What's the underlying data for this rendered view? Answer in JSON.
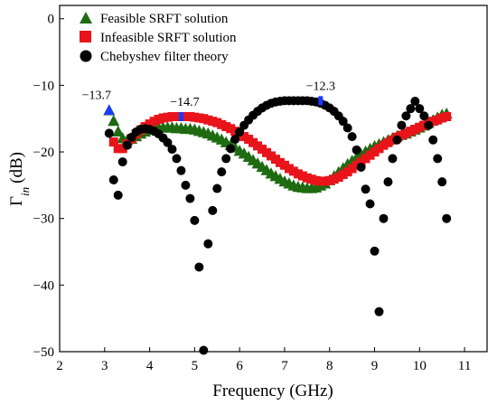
{
  "chart_data": {
    "type": "scatter",
    "xlabel": "Frequency (GHz)",
    "ylabel_main": "Γ",
    "ylabel_sub": "in",
    "ylabel_unit": "(dB)",
    "xlim": [
      2,
      11.5
    ],
    "ylim": [
      -50,
      2
    ],
    "xticks": [
      2,
      3,
      4,
      5,
      6,
      7,
      8,
      9,
      10,
      11
    ],
    "yticks": [
      0,
      -10,
      -20,
      -30,
      -40,
      -50
    ],
    "legend_position": "top-left",
    "series": [
      {
        "name": "Feasible SRFT solution",
        "marker": "triangle",
        "color": "#1e6b12",
        "x": [
          3.1,
          3.2,
          3.3,
          3.4,
          3.5,
          3.6,
          3.7,
          3.8,
          3.9,
          4.0,
          4.1,
          4.2,
          4.3,
          4.4,
          4.5,
          4.6,
          4.7,
          4.8,
          4.9,
          5.0,
          5.1,
          5.2,
          5.3,
          5.4,
          5.5,
          5.6,
          5.7,
          5.8,
          5.9,
          6.0,
          6.1,
          6.2,
          6.3,
          6.4,
          6.5,
          6.6,
          6.7,
          6.8,
          6.9,
          7.0,
          7.1,
          7.2,
          7.3,
          7.4,
          7.5,
          7.6,
          7.7,
          7.8,
          7.9,
          8.0,
          8.1,
          8.2,
          8.3,
          8.4,
          8.5,
          8.6,
          8.7,
          8.8,
          8.9,
          9.0,
          9.1,
          9.2,
          9.3,
          9.4,
          9.5,
          9.6,
          9.7,
          9.8,
          9.9,
          10.0,
          10.1,
          10.2,
          10.3,
          10.4,
          10.5,
          10.6
        ],
        "y": [
          -13.7,
          -15.3,
          -16.9,
          -17.9,
          -18.2,
          -18.0,
          -17.6,
          -17.2,
          -16.9,
          -16.6,
          -16.4,
          -16.3,
          -16.3,
          -16.3,
          -16.3,
          -16.4,
          -16.4,
          -16.5,
          -16.5,
          -16.6,
          -16.8,
          -17.0,
          -17.2,
          -17.5,
          -17.8,
          -18.1,
          -18.5,
          -18.9,
          -19.3,
          -19.8,
          -20.2,
          -20.7,
          -21.2,
          -21.7,
          -22.2,
          -22.7,
          -23.2,
          -23.6,
          -24.0,
          -24.4,
          -24.7,
          -25.0,
          -25.2,
          -25.3,
          -25.4,
          -25.4,
          -25.3,
          -25.0,
          -24.7,
          -24.2,
          -23.6,
          -23.0,
          -22.4,
          -21.8,
          -21.3,
          -20.8,
          -20.3,
          -19.9,
          -19.5,
          -19.1,
          -18.8,
          -18.5,
          -18.2,
          -17.9,
          -17.6,
          -17.4,
          -17.2,
          -16.9,
          -16.6,
          -16.3,
          -16.0,
          -15.6,
          -15.2,
          -14.8,
          -14.4,
          -14.2
        ]
      },
      {
        "name": "Infeasible SRFT solution",
        "marker": "square",
        "color": "#e8141a",
        "x": [
          3.2,
          3.3,
          3.4,
          3.5,
          3.6,
          3.7,
          3.8,
          3.9,
          4.0,
          4.1,
          4.2,
          4.3,
          4.4,
          4.5,
          4.6,
          4.7,
          4.8,
          4.9,
          5.0,
          5.1,
          5.2,
          5.3,
          5.4,
          5.5,
          5.6,
          5.7,
          5.8,
          5.9,
          6.0,
          6.1,
          6.2,
          6.3,
          6.4,
          6.5,
          6.6,
          6.7,
          6.8,
          6.9,
          7.0,
          7.1,
          7.2,
          7.3,
          7.4,
          7.5,
          7.6,
          7.7,
          7.8,
          7.9,
          8.0,
          8.1,
          8.2,
          8.3,
          8.4,
          8.5,
          8.6,
          8.7,
          8.8,
          8.9,
          9.0,
          9.1,
          9.2,
          9.3,
          9.4,
          9.5,
          9.6,
          9.7,
          9.8,
          9.9,
          10.0,
          10.1,
          10.2,
          10.3,
          10.4,
          10.5,
          10.6
        ],
        "y": [
          -18.5,
          -19.5,
          -19.5,
          -18.8,
          -18.0,
          -17.3,
          -16.7,
          -16.2,
          -15.8,
          -15.4,
          -15.1,
          -14.9,
          -14.8,
          -14.7,
          -14.7,
          -14.7,
          -14.7,
          -14.7,
          -14.8,
          -14.9,
          -15.0,
          -15.2,
          -15.4,
          -15.6,
          -15.9,
          -16.2,
          -16.5,
          -16.9,
          -17.3,
          -17.7,
          -18.1,
          -18.6,
          -19.1,
          -19.6,
          -20.1,
          -20.6,
          -21.1,
          -21.6,
          -22.0,
          -22.5,
          -22.9,
          -23.3,
          -23.6,
          -23.9,
          -24.1,
          -24.3,
          -24.4,
          -24.4,
          -24.3,
          -24.1,
          -23.8,
          -23.4,
          -23.0,
          -22.5,
          -22.0,
          -21.5,
          -21.0,
          -20.5,
          -20.0,
          -19.5,
          -19.0,
          -18.6,
          -18.2,
          -17.8,
          -17.5,
          -17.2,
          -16.9,
          -16.6,
          -16.3,
          -16.0,
          -15.7,
          -15.4,
          -15.2,
          -14.9,
          -14.7
        ]
      },
      {
        "name": "Chebyshev filter theory",
        "marker": "circle",
        "color": "#000000",
        "x": [
          3.1,
          3.2,
          3.3,
          3.4,
          3.5,
          3.6,
          3.7,
          3.8,
          3.9,
          4.0,
          4.1,
          4.2,
          4.3,
          4.4,
          4.5,
          4.6,
          4.7,
          4.8,
          4.9,
          5.0,
          5.1,
          5.2,
          5.3,
          5.4,
          5.5,
          5.6,
          5.7,
          5.8,
          5.9,
          6.0,
          6.1,
          6.2,
          6.3,
          6.4,
          6.5,
          6.6,
          6.7,
          6.8,
          6.9,
          7.0,
          7.1,
          7.2,
          7.3,
          7.4,
          7.5,
          7.6,
          7.7,
          7.8,
          7.9,
          8.0,
          8.1,
          8.2,
          8.3,
          8.4,
          8.5,
          8.6,
          8.7,
          8.8,
          8.9,
          9.0,
          9.1,
          9.2,
          9.3,
          9.4,
          9.5,
          9.6,
          9.7,
          9.8,
          9.9,
          10.0,
          10.1,
          10.2,
          10.3,
          10.4,
          10.5,
          10.6
        ],
        "y": [
          -17.2,
          -24.2,
          -26.5,
          -21.5,
          -19.0,
          -17.8,
          -17.0,
          -16.6,
          -16.5,
          -16.6,
          -16.9,
          -17.3,
          -17.9,
          -18.6,
          -19.6,
          -21.0,
          -22.8,
          -25.0,
          -27.0,
          -30.3,
          -37.3,
          -49.8,
          -33.8,
          -28.8,
          -25.5,
          -23.0,
          -21.0,
          -19.5,
          -18.1,
          -17.0,
          -16.0,
          -15.2,
          -14.5,
          -13.9,
          -13.4,
          -13.0,
          -12.7,
          -12.5,
          -12.4,
          -12.3,
          -12.3,
          -12.3,
          -12.3,
          -12.3,
          -12.3,
          -12.4,
          -12.5,
          -12.7,
          -13.0,
          -13.4,
          -13.9,
          -14.6,
          -15.4,
          -16.4,
          -17.7,
          -19.7,
          -22.3,
          -25.6,
          -27.8,
          -34.9,
          -44.0,
          -30.0,
          -24.5,
          -21.0,
          -18.2,
          -16.0,
          -14.6,
          -13.5,
          -12.4,
          -13.5,
          -14.6,
          -16.0,
          -18.2,
          -21.0,
          -24.5,
          -30.0
        ],
        "y_note": "values read from markers"
      }
    ],
    "annotations": [
      {
        "text": "−13.7",
        "x": 3.1,
        "y": -13.7
      },
      {
        "text": "−14.7",
        "x": 4.7,
        "y": -14.7
      },
      {
        "text": "−12.3",
        "x": 7.8,
        "y": -12.3
      }
    ],
    "highlight_color": "#1a3aff"
  }
}
